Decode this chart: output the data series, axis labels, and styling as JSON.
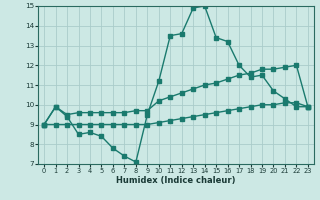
{
  "xlabel": "Humidex (Indice chaleur)",
  "xlim": [
    -0.5,
    23.5
  ],
  "ylim": [
    7,
    15
  ],
  "yticks": [
    7,
    8,
    9,
    10,
    11,
    12,
    13,
    14,
    15
  ],
  "xticks": [
    0,
    1,
    2,
    3,
    4,
    5,
    6,
    7,
    8,
    9,
    10,
    11,
    12,
    13,
    14,
    15,
    16,
    17,
    18,
    19,
    20,
    21,
    22,
    23
  ],
  "line_color": "#1a7a6e",
  "bg_color": "#cce8e4",
  "grid_color": "#aaccca",
  "line1_x": [
    0,
    1,
    2,
    3,
    4,
    5,
    6,
    7,
    8,
    9,
    10,
    11,
    12,
    13,
    14,
    15,
    16,
    17,
    18,
    19,
    20,
    21,
    22,
    23
  ],
  "line1_y": [
    9.0,
    9.9,
    9.4,
    8.5,
    8.6,
    8.4,
    7.8,
    7.4,
    7.1,
    9.5,
    11.2,
    13.5,
    13.6,
    14.9,
    15.0,
    13.4,
    13.2,
    12.0,
    11.4,
    11.5,
    10.7,
    10.3,
    9.9,
    9.9
  ],
  "line2_x": [
    0,
    1,
    2,
    3,
    4,
    5,
    6,
    7,
    8,
    9,
    10,
    11,
    12,
    13,
    14,
    15,
    16,
    17,
    18,
    19,
    20,
    21,
    22,
    23
  ],
  "line2_y": [
    9.0,
    9.9,
    9.5,
    9.6,
    9.6,
    9.6,
    9.6,
    9.6,
    9.7,
    9.7,
    10.2,
    10.4,
    10.6,
    10.8,
    11.0,
    11.1,
    11.3,
    11.5,
    11.6,
    11.8,
    11.8,
    11.9,
    12.0,
    9.9
  ],
  "line3_x": [
    0,
    1,
    2,
    3,
    4,
    5,
    6,
    7,
    8,
    9,
    10,
    11,
    12,
    13,
    14,
    15,
    16,
    17,
    18,
    19,
    20,
    21,
    22,
    23
  ],
  "line3_y": [
    9.0,
    9.0,
    9.0,
    9.0,
    9.0,
    9.0,
    9.0,
    9.0,
    9.0,
    9.0,
    9.1,
    9.2,
    9.3,
    9.4,
    9.5,
    9.6,
    9.7,
    9.8,
    9.9,
    10.0,
    10.0,
    10.1,
    10.1,
    9.9
  ]
}
